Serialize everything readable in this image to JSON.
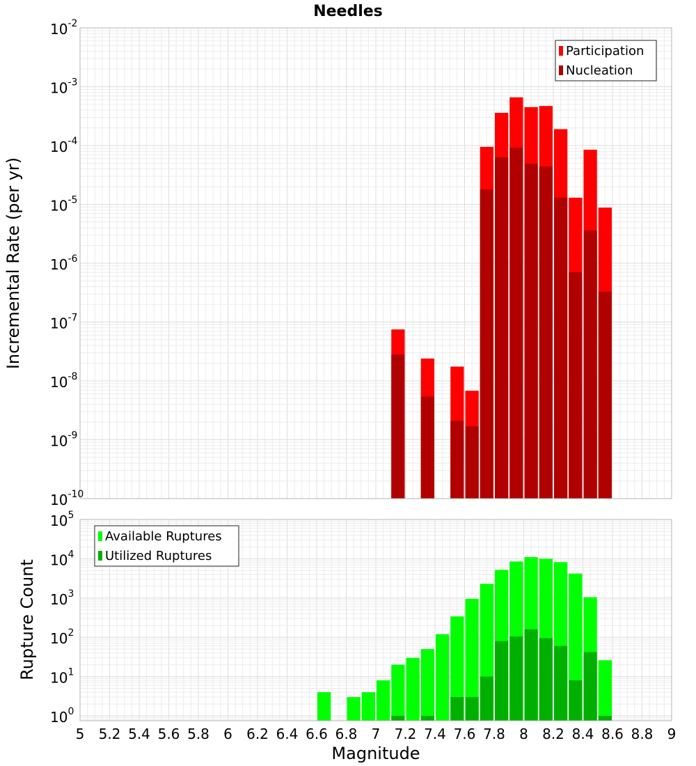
{
  "chart_data": [
    {
      "type": "bar",
      "title": "Needles",
      "xlabel": "",
      "ylabel": "Incremental Rate (per yr)",
      "yscale": "log",
      "ylim": [
        1e-10,
        0.01
      ],
      "xlim": [
        5,
        9
      ],
      "grid": true,
      "legend_position": "top-right",
      "y_tick_exponents": [
        -10,
        -9,
        -8,
        -7,
        -6,
        -5,
        -4,
        -3,
        -2
      ],
      "series": [
        {
          "name": "Participation",
          "color": "#ff0000",
          "points": [
            {
              "x": 7.15,
              "y": 7.5e-08
            },
            {
              "x": 7.35,
              "y": 2.4e-08
            },
            {
              "x": 7.55,
              "y": 1.75e-08
            },
            {
              "x": 7.65,
              "y": 6.8e-09
            },
            {
              "x": 7.75,
              "y": 9.5e-05
            },
            {
              "x": 7.85,
              "y": 0.00036
            },
            {
              "x": 7.95,
              "y": 0.00066
            },
            {
              "x": 8.05,
              "y": 0.00045
            },
            {
              "x": 8.15,
              "y": 0.00047
            },
            {
              "x": 8.25,
              "y": 0.00019
            },
            {
              "x": 8.35,
              "y": 1.3e-05
            },
            {
              "x": 8.45,
              "y": 8.5e-05
            },
            {
              "x": 8.55,
              "y": 8.8e-06
            }
          ]
        },
        {
          "name": "Nucleation",
          "color": "#b00000",
          "points": [
            {
              "x": 7.15,
              "y": 2.8e-08
            },
            {
              "x": 7.35,
              "y": 5.4e-09
            },
            {
              "x": 7.55,
              "y": 2.1e-09
            },
            {
              "x": 7.65,
              "y": 1.7e-09
            },
            {
              "x": 7.75,
              "y": 1.8e-05
            },
            {
              "x": 7.85,
              "y": 6.3e-05
            },
            {
              "x": 7.95,
              "y": 9.2e-05
            },
            {
              "x": 8.05,
              "y": 4.9e-05
            },
            {
              "x": 8.15,
              "y": 4.4e-05
            },
            {
              "x": 8.25,
              "y": 1.3e-05
            },
            {
              "x": 8.35,
              "y": 7e-07
            },
            {
              "x": 8.45,
              "y": 3.6e-06
            },
            {
              "x": 8.55,
              "y": 3.3e-07
            }
          ]
        }
      ]
    },
    {
      "type": "bar",
      "title": "",
      "xlabel": "Magnitude",
      "ylabel": "Rupture Count",
      "yscale": "log",
      "ylim": [
        0.75,
        100000
      ],
      "xlim": [
        5,
        9
      ],
      "grid": true,
      "legend_position": "top-left",
      "y_tick_exponents": [
        0,
        1,
        2,
        3,
        4,
        5
      ],
      "x_ticks": [
        "5",
        "5.2",
        "5.4",
        "5.6",
        "5.8",
        "6",
        "6.2",
        "6.4",
        "6.6",
        "6.8",
        "7",
        "7.2",
        "7.4",
        "7.6",
        "7.8",
        "8",
        "8.2",
        "8.4",
        "8.6",
        "8.8",
        "9"
      ],
      "series": [
        {
          "name": "Available Ruptures",
          "color": "#00ff00",
          "points": [
            {
              "x": 6.65,
              "y": 4
            },
            {
              "x": 6.85,
              "y": 3
            },
            {
              "x": 6.95,
              "y": 4
            },
            {
              "x": 7.05,
              "y": 8
            },
            {
              "x": 7.15,
              "y": 20
            },
            {
              "x": 7.25,
              "y": 30
            },
            {
              "x": 7.35,
              "y": 50
            },
            {
              "x": 7.45,
              "y": 120
            },
            {
              "x": 7.55,
              "y": 340
            },
            {
              "x": 7.65,
              "y": 950
            },
            {
              "x": 7.75,
              "y": 2300
            },
            {
              "x": 7.85,
              "y": 5200
            },
            {
              "x": 7.95,
              "y": 8500
            },
            {
              "x": 8.05,
              "y": 11000
            },
            {
              "x": 8.15,
              "y": 10000
            },
            {
              "x": 8.25,
              "y": 8200
            },
            {
              "x": 8.35,
              "y": 4200
            },
            {
              "x": 8.45,
              "y": 1050
            },
            {
              "x": 8.55,
              "y": 26
            }
          ]
        },
        {
          "name": "Utilized Ruptures",
          "color": "#00b000",
          "points": [
            {
              "x": 7.15,
              "y": 1
            },
            {
              "x": 7.35,
              "y": 1
            },
            {
              "x": 7.55,
              "y": 3
            },
            {
              "x": 7.65,
              "y": 3
            },
            {
              "x": 7.75,
              "y": 10
            },
            {
              "x": 7.85,
              "y": 80
            },
            {
              "x": 7.95,
              "y": 105
            },
            {
              "x": 8.05,
              "y": 160
            },
            {
              "x": 8.15,
              "y": 95
            },
            {
              "x": 8.25,
              "y": 60
            },
            {
              "x": 8.35,
              "y": 8
            },
            {
              "x": 8.45,
              "y": 42
            },
            {
              "x": 8.55,
              "y": 1
            }
          ]
        }
      ]
    }
  ]
}
